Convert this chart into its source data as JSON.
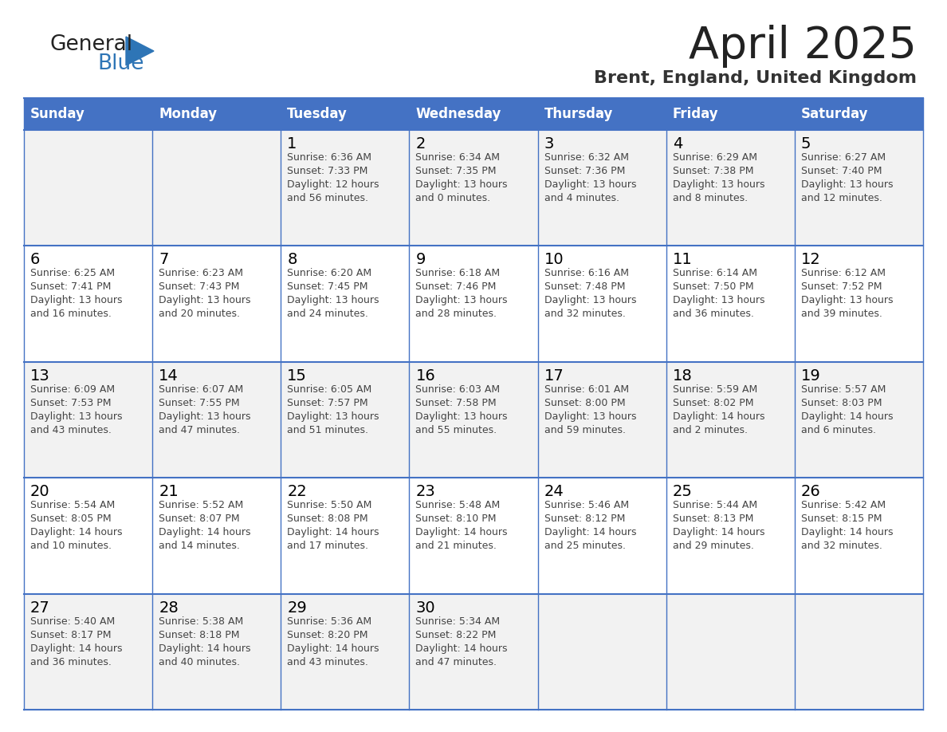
{
  "title": "April 2025",
  "subtitle": "Brent, England, United Kingdom",
  "days_of_week": [
    "Sunday",
    "Monday",
    "Tuesday",
    "Wednesday",
    "Thursday",
    "Friday",
    "Saturday"
  ],
  "header_bg": "#4472C4",
  "header_text": "#FFFFFF",
  "cell_bg_light": "#F2F2F2",
  "cell_bg_white": "#FFFFFF",
  "border_color": "#4472C4",
  "day_num_color": "#000000",
  "cell_text_color": "#444444",
  "title_color": "#222222",
  "subtitle_color": "#333333",
  "logo_general_color": "#222222",
  "logo_blue_color": "#2E75B6",
  "weeks": [
    [
      {
        "day": null,
        "sunrise": null,
        "sunset": null,
        "daylight_line1": null,
        "daylight_line2": null
      },
      {
        "day": null,
        "sunrise": null,
        "sunset": null,
        "daylight_line1": null,
        "daylight_line2": null
      },
      {
        "day": 1,
        "sunrise": "6:36 AM",
        "sunset": "7:33 PM",
        "daylight_line1": "Daylight: 12 hours",
        "daylight_line2": "and 56 minutes."
      },
      {
        "day": 2,
        "sunrise": "6:34 AM",
        "sunset": "7:35 PM",
        "daylight_line1": "Daylight: 13 hours",
        "daylight_line2": "and 0 minutes."
      },
      {
        "day": 3,
        "sunrise": "6:32 AM",
        "sunset": "7:36 PM",
        "daylight_line1": "Daylight: 13 hours",
        "daylight_line2": "and 4 minutes."
      },
      {
        "day": 4,
        "sunrise": "6:29 AM",
        "sunset": "7:38 PM",
        "daylight_line1": "Daylight: 13 hours",
        "daylight_line2": "and 8 minutes."
      },
      {
        "day": 5,
        "sunrise": "6:27 AM",
        "sunset": "7:40 PM",
        "daylight_line1": "Daylight: 13 hours",
        "daylight_line2": "and 12 minutes."
      }
    ],
    [
      {
        "day": 6,
        "sunrise": "6:25 AM",
        "sunset": "7:41 PM",
        "daylight_line1": "Daylight: 13 hours",
        "daylight_line2": "and 16 minutes."
      },
      {
        "day": 7,
        "sunrise": "6:23 AM",
        "sunset": "7:43 PM",
        "daylight_line1": "Daylight: 13 hours",
        "daylight_line2": "and 20 minutes."
      },
      {
        "day": 8,
        "sunrise": "6:20 AM",
        "sunset": "7:45 PM",
        "daylight_line1": "Daylight: 13 hours",
        "daylight_line2": "and 24 minutes."
      },
      {
        "day": 9,
        "sunrise": "6:18 AM",
        "sunset": "7:46 PM",
        "daylight_line1": "Daylight: 13 hours",
        "daylight_line2": "and 28 minutes."
      },
      {
        "day": 10,
        "sunrise": "6:16 AM",
        "sunset": "7:48 PM",
        "daylight_line1": "Daylight: 13 hours",
        "daylight_line2": "and 32 minutes."
      },
      {
        "day": 11,
        "sunrise": "6:14 AM",
        "sunset": "7:50 PM",
        "daylight_line1": "Daylight: 13 hours",
        "daylight_line2": "and 36 minutes."
      },
      {
        "day": 12,
        "sunrise": "6:12 AM",
        "sunset": "7:52 PM",
        "daylight_line1": "Daylight: 13 hours",
        "daylight_line2": "and 39 minutes."
      }
    ],
    [
      {
        "day": 13,
        "sunrise": "6:09 AM",
        "sunset": "7:53 PM",
        "daylight_line1": "Daylight: 13 hours",
        "daylight_line2": "and 43 minutes."
      },
      {
        "day": 14,
        "sunrise": "6:07 AM",
        "sunset": "7:55 PM",
        "daylight_line1": "Daylight: 13 hours",
        "daylight_line2": "and 47 minutes."
      },
      {
        "day": 15,
        "sunrise": "6:05 AM",
        "sunset": "7:57 PM",
        "daylight_line1": "Daylight: 13 hours",
        "daylight_line2": "and 51 minutes."
      },
      {
        "day": 16,
        "sunrise": "6:03 AM",
        "sunset": "7:58 PM",
        "daylight_line1": "Daylight: 13 hours",
        "daylight_line2": "and 55 minutes."
      },
      {
        "day": 17,
        "sunrise": "6:01 AM",
        "sunset": "8:00 PM",
        "daylight_line1": "Daylight: 13 hours",
        "daylight_line2": "and 59 minutes."
      },
      {
        "day": 18,
        "sunrise": "5:59 AM",
        "sunset": "8:02 PM",
        "daylight_line1": "Daylight: 14 hours",
        "daylight_line2": "and 2 minutes."
      },
      {
        "day": 19,
        "sunrise": "5:57 AM",
        "sunset": "8:03 PM",
        "daylight_line1": "Daylight: 14 hours",
        "daylight_line2": "and 6 minutes."
      }
    ],
    [
      {
        "day": 20,
        "sunrise": "5:54 AM",
        "sunset": "8:05 PM",
        "daylight_line1": "Daylight: 14 hours",
        "daylight_line2": "and 10 minutes."
      },
      {
        "day": 21,
        "sunrise": "5:52 AM",
        "sunset": "8:07 PM",
        "daylight_line1": "Daylight: 14 hours",
        "daylight_line2": "and 14 minutes."
      },
      {
        "day": 22,
        "sunrise": "5:50 AM",
        "sunset": "8:08 PM",
        "daylight_line1": "Daylight: 14 hours",
        "daylight_line2": "and 17 minutes."
      },
      {
        "day": 23,
        "sunrise": "5:48 AM",
        "sunset": "8:10 PM",
        "daylight_line1": "Daylight: 14 hours",
        "daylight_line2": "and 21 minutes."
      },
      {
        "day": 24,
        "sunrise": "5:46 AM",
        "sunset": "8:12 PM",
        "daylight_line1": "Daylight: 14 hours",
        "daylight_line2": "and 25 minutes."
      },
      {
        "day": 25,
        "sunrise": "5:44 AM",
        "sunset": "8:13 PM",
        "daylight_line1": "Daylight: 14 hours",
        "daylight_line2": "and 29 minutes."
      },
      {
        "day": 26,
        "sunrise": "5:42 AM",
        "sunset": "8:15 PM",
        "daylight_line1": "Daylight: 14 hours",
        "daylight_line2": "and 32 minutes."
      }
    ],
    [
      {
        "day": 27,
        "sunrise": "5:40 AM",
        "sunset": "8:17 PM",
        "daylight_line1": "Daylight: 14 hours",
        "daylight_line2": "and 36 minutes."
      },
      {
        "day": 28,
        "sunrise": "5:38 AM",
        "sunset": "8:18 PM",
        "daylight_line1": "Daylight: 14 hours",
        "daylight_line2": "and 40 minutes."
      },
      {
        "day": 29,
        "sunrise": "5:36 AM",
        "sunset": "8:20 PM",
        "daylight_line1": "Daylight: 14 hours",
        "daylight_line2": "and 43 minutes."
      },
      {
        "day": 30,
        "sunrise": "5:34 AM",
        "sunset": "8:22 PM",
        "daylight_line1": "Daylight: 14 hours",
        "daylight_line2": "and 47 minutes."
      },
      {
        "day": null,
        "sunrise": null,
        "sunset": null,
        "daylight_line1": null,
        "daylight_line2": null
      },
      {
        "day": null,
        "sunrise": null,
        "sunset": null,
        "daylight_line1": null,
        "daylight_line2": null
      },
      {
        "day": null,
        "sunrise": null,
        "sunset": null,
        "daylight_line1": null,
        "daylight_line2": null
      }
    ]
  ]
}
